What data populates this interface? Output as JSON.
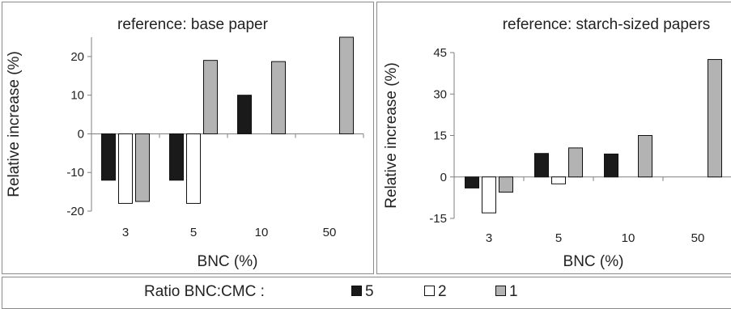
{
  "colors": {
    "5": "#1a1a1a",
    "2": "#ffffff",
    "1": "#b3b3b3",
    "axis": "#7f7f7f"
  },
  "legend": {
    "title": "Ratio BNC:CMC :",
    "items": [
      {
        "key": "5",
        "label": "5"
      },
      {
        "key": "2",
        "label": "2"
      },
      {
        "key": "1",
        "label": "1"
      }
    ]
  },
  "chart_data": [
    {
      "type": "bar",
      "title": "reference: base paper",
      "xlabel": "BNC (%)",
      "ylabel": "Relative increase (%)",
      "categories": [
        "3",
        "5",
        "10",
        "50"
      ],
      "ylim": [
        -20,
        25
      ],
      "yticks": [
        -20,
        -10,
        0,
        10,
        20
      ],
      "legend": "bottom",
      "grid": false,
      "series": [
        {
          "name": "5",
          "values": [
            -12,
            -12,
            10,
            null
          ]
        },
        {
          "name": "2",
          "values": [
            -18,
            -18,
            null,
            null
          ]
        },
        {
          "name": "1",
          "values": [
            -17.5,
            19,
            18.7,
            25
          ]
        }
      ]
    },
    {
      "type": "bar",
      "title": "reference: starch-sized papers",
      "xlabel": "BNC (%)",
      "ylabel": "Relative increase (%)",
      "categories": [
        "3",
        "5",
        "10",
        "50"
      ],
      "ylim": [
        -15,
        45
      ],
      "yticks": [
        -15,
        0,
        15,
        30,
        45
      ],
      "legend": "bottom",
      "grid": false,
      "series": [
        {
          "name": "5",
          "values": [
            -4,
            8.5,
            8.3,
            null
          ]
        },
        {
          "name": "2",
          "values": [
            -13,
            -2.5,
            null,
            null
          ]
        },
        {
          "name": "1",
          "values": [
            -5.5,
            10.5,
            15,
            42.5
          ]
        }
      ]
    }
  ]
}
